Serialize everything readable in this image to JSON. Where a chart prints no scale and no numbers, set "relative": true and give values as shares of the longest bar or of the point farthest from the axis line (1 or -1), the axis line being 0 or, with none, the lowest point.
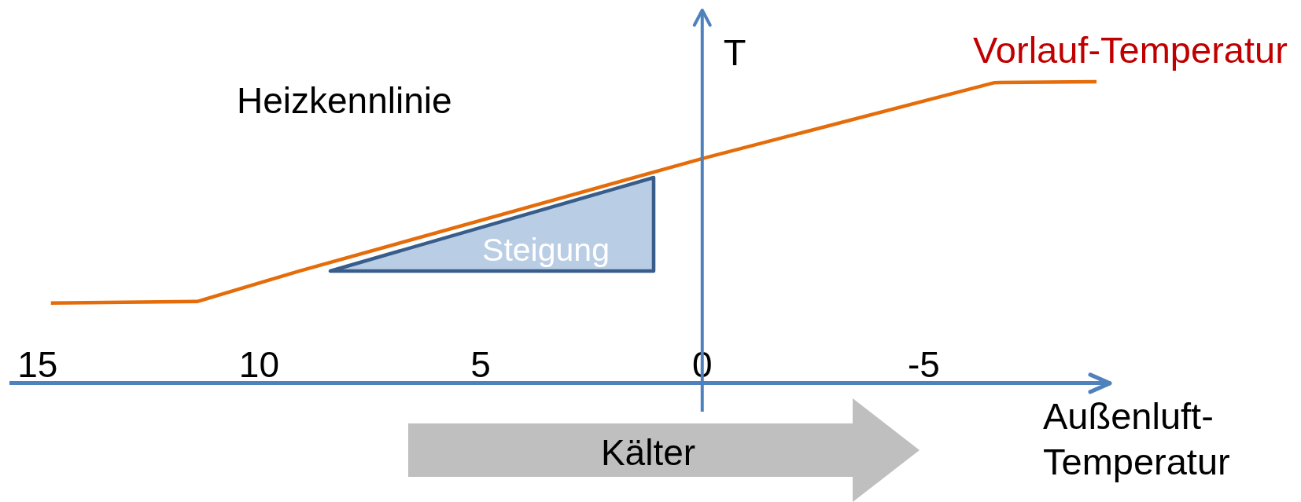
{
  "chart_data": {
    "type": "line",
    "title": "Heizkennlinie",
    "xlabel": "Außenluft-Temperatur",
    "ylabel": "T",
    "annotations": [
      "Steigung",
      "Kälter"
    ],
    "x": [
      14.7,
      11.4,
      9.1,
      0,
      -6.6,
      -8.9
    ],
    "series": [
      {
        "name": "Vorlauf-Temperatur",
        "color": "#e46c0a",
        "values": [
          0.266,
          0.271,
          0.372,
          0.745,
          0.997,
          1
        ]
      }
    ],
    "ref_lines": [
      {
        "axis": "x",
        "value": 0,
        "color": "#4f81bd"
      }
    ],
    "relative": true,
    "xlim": [
      15.6,
      -9.2
    ],
    "xticks": [
      15,
      10,
      5,
      0,
      -5
    ]
  }
}
